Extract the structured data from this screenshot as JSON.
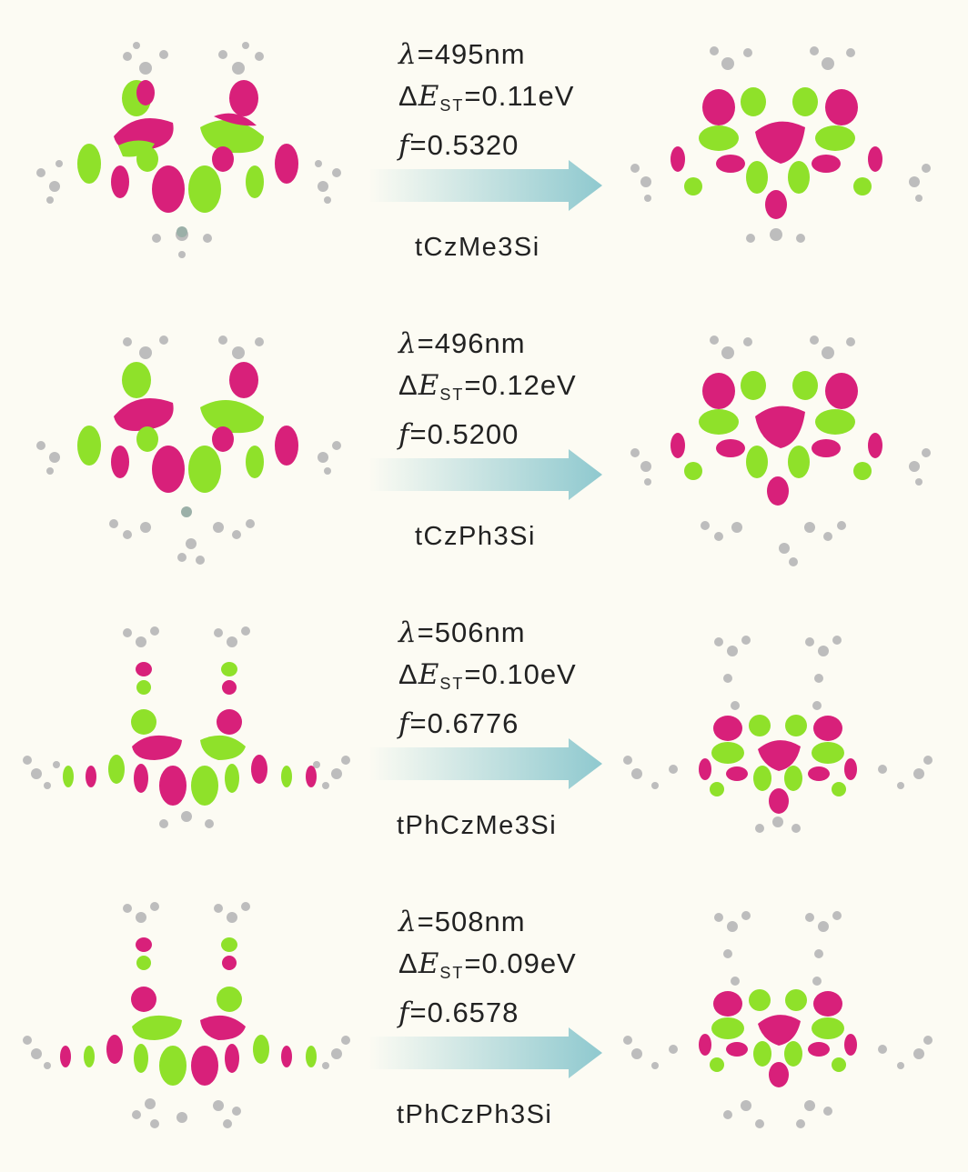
{
  "colors": {
    "lobe_positive": "#d8207a",
    "lobe_negative": "#8fe12a",
    "atom_carbon": "#b3b3b3",
    "atom_hydrogen": "#dcdcdc",
    "arrow_start": "#fcfbf3",
    "arrow_end": "#8fc9cf",
    "background": "#fcfbf3"
  },
  "symbols": {
    "lambda": "λ",
    "delta": "Δ",
    "E": "E",
    "st": "ST",
    "f": "f"
  },
  "rows": [
    {
      "wavelength": "=495nm",
      "delta_est": "=0.11eV",
      "osc_strength": "=0.5320",
      "name": "tCzMe3Si"
    },
    {
      "wavelength": "=496nm",
      "delta_est": "=0.12eV",
      "osc_strength": "=0.5200",
      "name": "tCzPh3Si"
    },
    {
      "wavelength": "=506nm",
      "delta_est": "=0.10eV",
      "osc_strength": "=0.6776",
      "name": "tPhCzMe3Si"
    },
    {
      "wavelength": "=508nm",
      "delta_est": "=0.09eV",
      "osc_strength": "=0.6578",
      "name": "tPhCzPh3Si"
    }
  ]
}
